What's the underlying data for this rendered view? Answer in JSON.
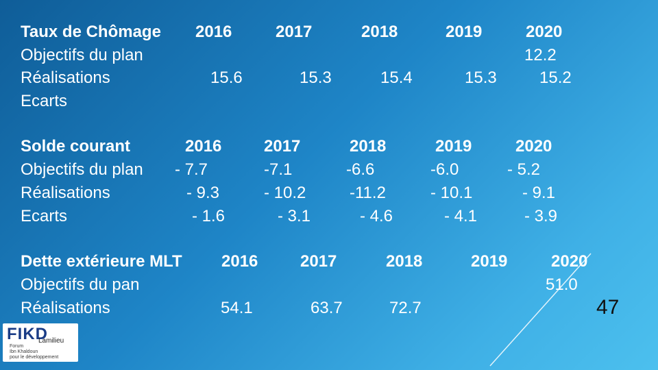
{
  "section1": {
    "rows": [
      {
        "label": "Taux de Chômage",
        "values": [
          "2016",
          "2017",
          "2018",
          "2019",
          "2020"
        ]
      },
      {
        "label": "Objectifs du plan",
        "values": [
          "",
          "",
          "",
          "",
          "12.2"
        ]
      },
      {
        "label": "Réalisations",
        "values": [
          "15.6",
          "15.3",
          "15.4",
          "15.3",
          "15.2"
        ]
      },
      {
        "label": "Ecarts",
        "values": [
          "",
          "",
          "",
          "",
          ""
        ]
      }
    ]
  },
  "section2": {
    "rows": [
      {
        "label": "Solde courant",
        "values": [
          "2016",
          "2017",
          "2018",
          "2019",
          "2020"
        ]
      },
      {
        "label": "Objectifs du plan",
        "values": [
          "- 7.7",
          "-7.1",
          "-6.6",
          "-6.0",
          "- 5.2"
        ]
      },
      {
        "label": "Réalisations",
        "values": [
          "- 9.3",
          "- 10.2",
          "-11.2",
          "- 10.1",
          "- 9.1"
        ]
      },
      {
        "label": "Ecarts",
        "values": [
          "- 1.6",
          "- 3.1",
          "- 4.6",
          "- 4.1",
          "- 3.9"
        ]
      }
    ]
  },
  "section3": {
    "rows": [
      {
        "label": "Dette extérieure MLT",
        "values": [
          "2016",
          "2017",
          "2018",
          "2019",
          "2020"
        ]
      },
      {
        "label": "Objectifs du pan",
        "values": [
          "",
          "",
          "",
          "",
          "51.0"
        ]
      },
      {
        "label": "Réalisations",
        "values": [
          "54.1",
          "63.7",
          "72.7",
          "",
          ""
        ]
      }
    ]
  },
  "logo": {
    "mark": "FIKD",
    "overlay": "Lamilieu",
    "subtitle": [
      "Forum",
      "Ibn Khaldoun",
      "pour le développement"
    ]
  },
  "page_number": "47"
}
